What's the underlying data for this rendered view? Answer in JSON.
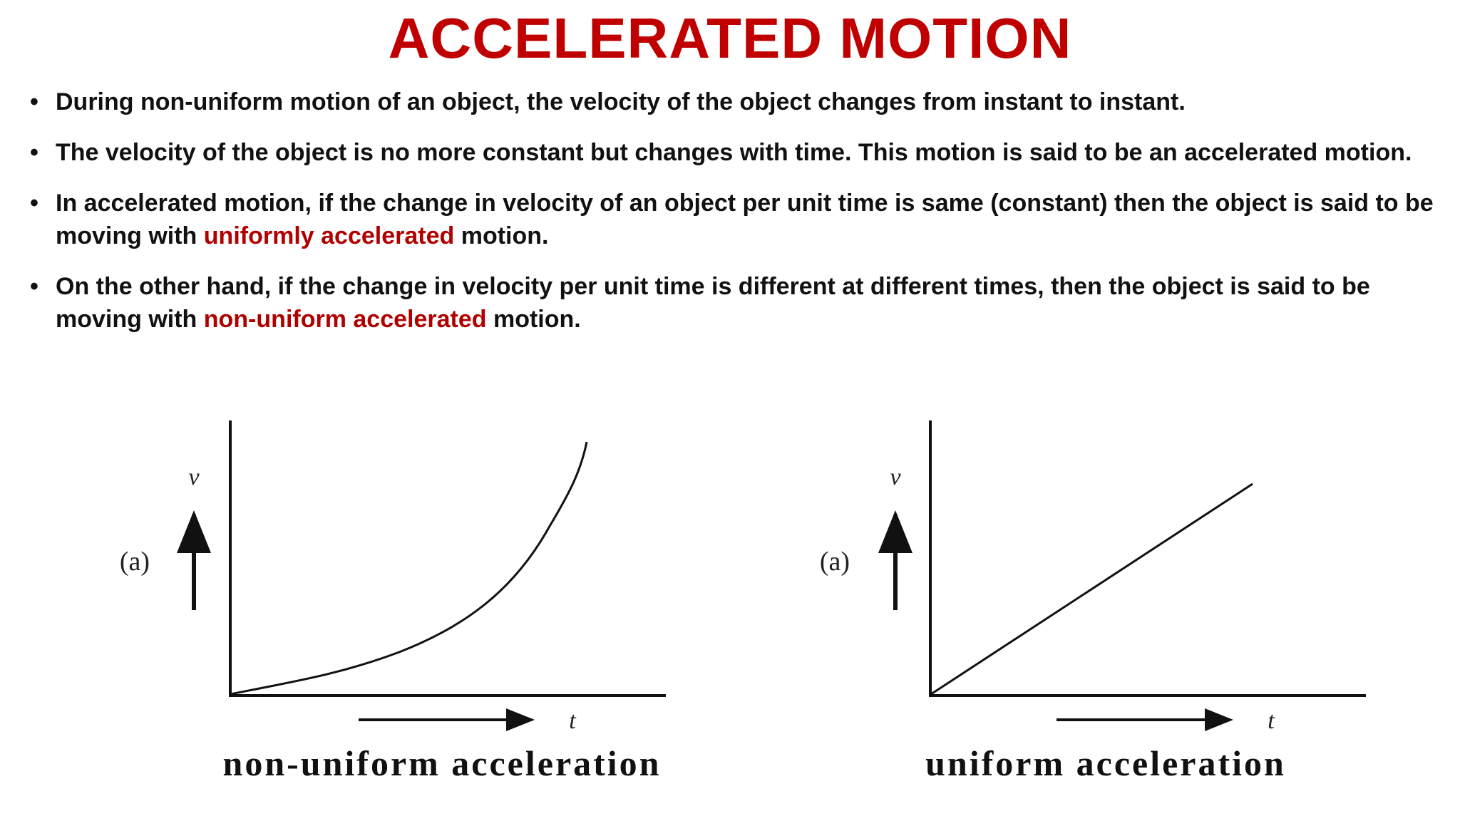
{
  "title": "ACCELERATED MOTION",
  "bullets": [
    [
      "During non-uniform motion of an object, the velocity of the object changes from instant to instant."
    ],
    [
      "The velocity of the object is no more constant but changes with time. This motion is said to be an accelerated motion."
    ],
    [
      "In accelerated motion, if the change in velocity of an object per unit time is same (constant) then the object is said to be moving with ",
      "uniformly accelerated",
      " motion."
    ],
    [
      "On the other hand, if the change in velocity per unit time is different at different times, then the object is said to be moving with ",
      "non-uniform accelerated",
      " motion."
    ]
  ],
  "figures": [
    {
      "label": "(a)",
      "v": "v",
      "t": "t",
      "caption": "non-uniform acceleration"
    },
    {
      "label": "(a)",
      "v": "v",
      "t": "t",
      "caption": "uniform acceleration"
    }
  ]
}
